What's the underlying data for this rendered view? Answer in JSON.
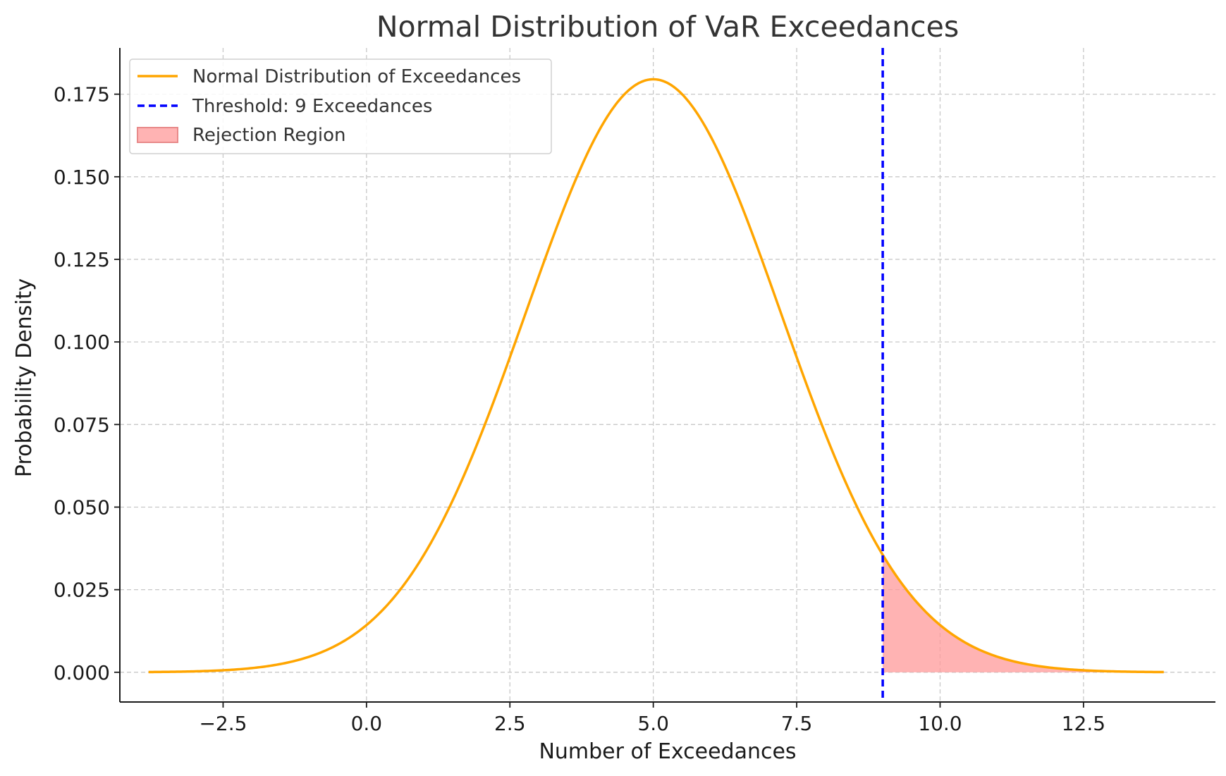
{
  "chart_data": {
    "type": "line",
    "title": "Normal Distribution of VaR Exceedances",
    "xlabel": "Number of Exceedances",
    "ylabel": "Probability Density",
    "xlim": [
      -4.3,
      14.8
    ],
    "ylim": [
      -0.009,
      0.189
    ],
    "x_ticks": [
      -2.5,
      0.0,
      2.5,
      5.0,
      7.5,
      10.0,
      12.5
    ],
    "x_tick_labels": [
      "−2.5",
      "0.0",
      "2.5",
      "5.0",
      "7.5",
      "10.0",
      "12.5"
    ],
    "y_ticks": [
      0.0,
      0.025,
      0.05,
      0.075,
      0.1,
      0.125,
      0.15,
      0.175
    ],
    "y_tick_labels": [
      "0.000",
      "0.025",
      "0.050",
      "0.075",
      "0.100",
      "0.125",
      "0.150",
      "0.175"
    ],
    "grid": true,
    "legend_position": "top-left",
    "series": [
      {
        "name": "Normal Distribution of Exceedances",
        "kind": "curve",
        "color": "#FFA500",
        "mean": 5,
        "std": 2.2224,
        "x_range": [
          -3.8,
          13.9
        ]
      },
      {
        "name": "Threshold: 9 Exceedances",
        "kind": "vline",
        "color": "#0000FF",
        "x": 9
      },
      {
        "name": "Rejection Region",
        "kind": "fill",
        "color": "#FF9999",
        "x_range": [
          9,
          13.9
        ]
      }
    ]
  }
}
